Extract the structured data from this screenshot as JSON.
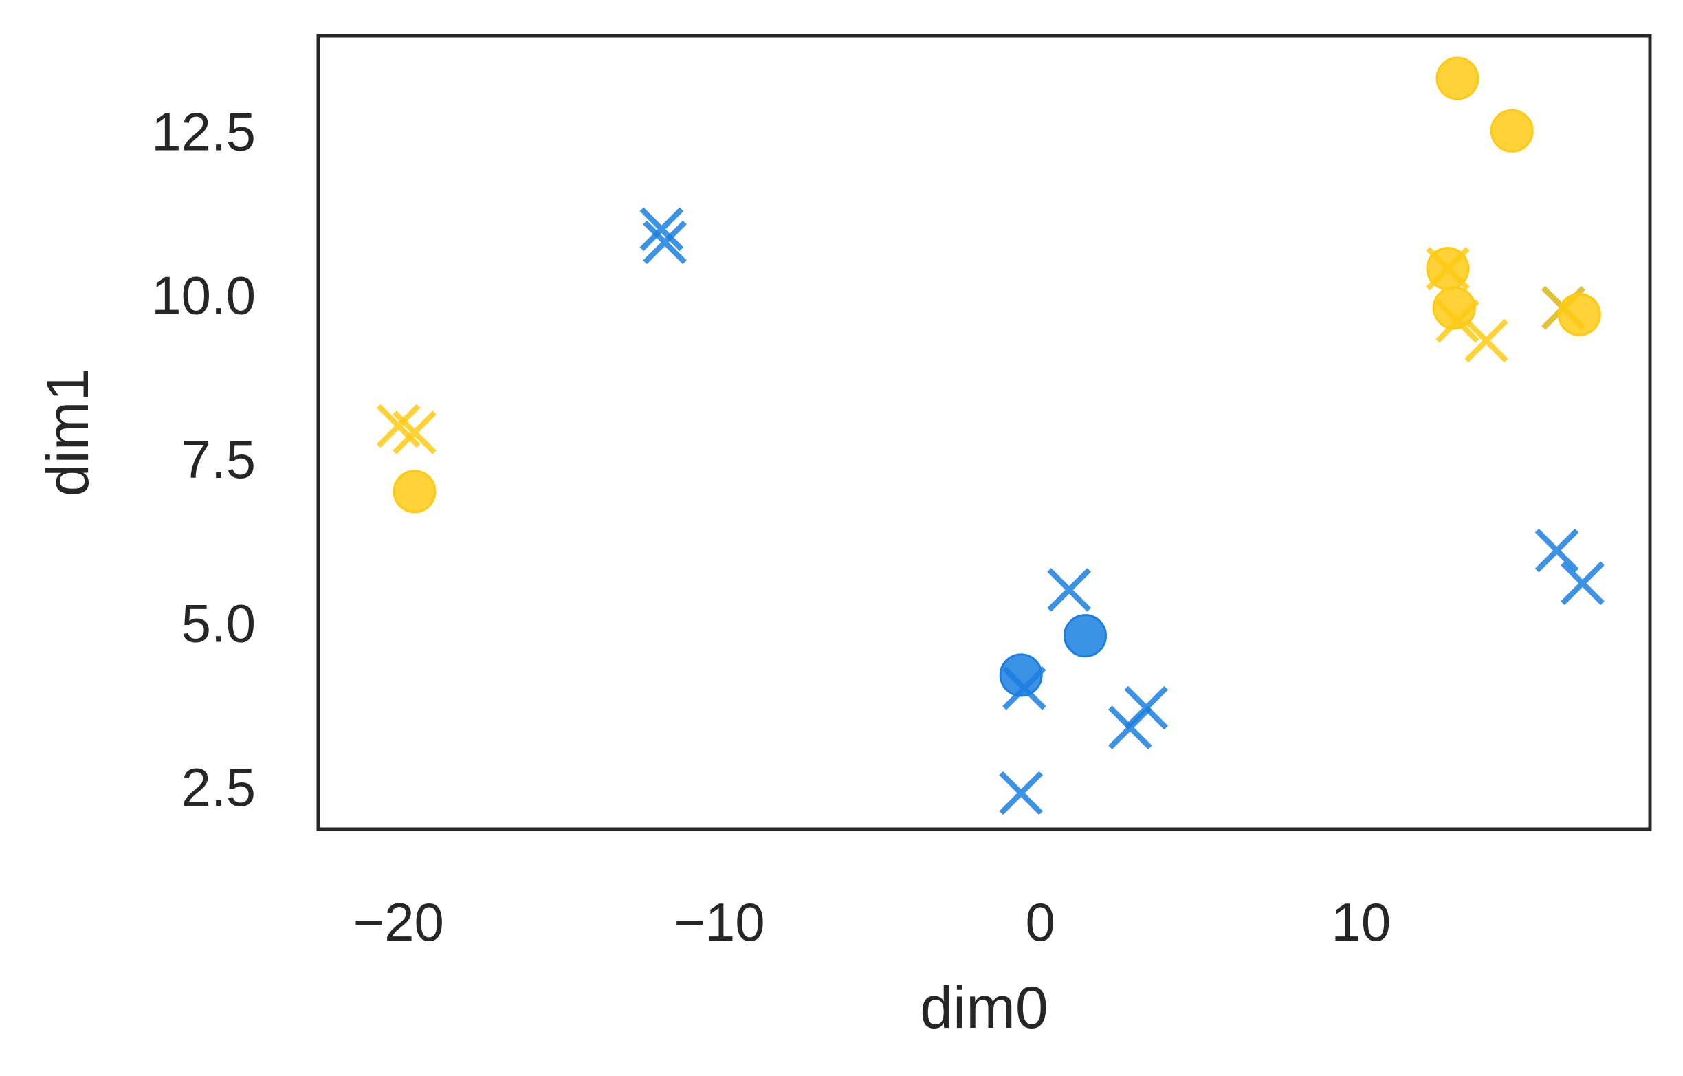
{
  "chart_data": {
    "type": "scatter",
    "xlabel": "dim0",
    "ylabel": "dim1",
    "xlim": [
      -22.5,
      19.0
    ],
    "ylim": [
      1.85,
      13.95
    ],
    "xticks": [
      -20,
      -10,
      0,
      10
    ],
    "xtick_labels": [
      "−20",
      "−10",
      "0",
      "10"
    ],
    "yticks": [
      2.5,
      5.0,
      7.5,
      10.0,
      12.5
    ],
    "ytick_labels": [
      "2.5",
      "5.0",
      "7.5",
      "10.0",
      "12.5"
    ],
    "grid": false,
    "colors": {
      "blue": "#1a7fe0",
      "yellow": "#ffca14",
      "frame": "#262626"
    },
    "series": [
      {
        "color": "blue",
        "marker": "x",
        "points": [
          [
            -11.8,
            11.0
          ],
          [
            -11.7,
            10.8
          ],
          [
            -0.5,
            4.0
          ],
          [
            -0.6,
            2.4
          ],
          [
            0.9,
            5.5
          ],
          [
            2.8,
            3.4
          ],
          [
            3.3,
            3.7
          ],
          [
            16.3,
            9.8
          ],
          [
            16.1,
            6.1
          ],
          [
            16.9,
            5.6
          ]
        ]
      },
      {
        "color": "blue",
        "marker": "o",
        "points": [
          [
            -0.6,
            4.2
          ],
          [
            1.4,
            4.8
          ]
        ]
      },
      {
        "color": "yellow",
        "marker": "x",
        "points": [
          [
            -20.0,
            8.0
          ],
          [
            -19.5,
            7.9
          ],
          [
            12.7,
            10.4
          ],
          [
            13.0,
            9.6
          ],
          [
            13.9,
            9.3
          ],
          [
            16.3,
            9.8
          ]
        ]
      },
      {
        "color": "yellow",
        "marker": "o",
        "points": [
          [
            -19.5,
            7.0
          ],
          [
            13.0,
            13.3
          ],
          [
            14.7,
            12.5
          ],
          [
            12.7,
            10.4
          ],
          [
            12.9,
            9.8
          ],
          [
            16.8,
            9.7
          ]
        ]
      }
    ]
  }
}
